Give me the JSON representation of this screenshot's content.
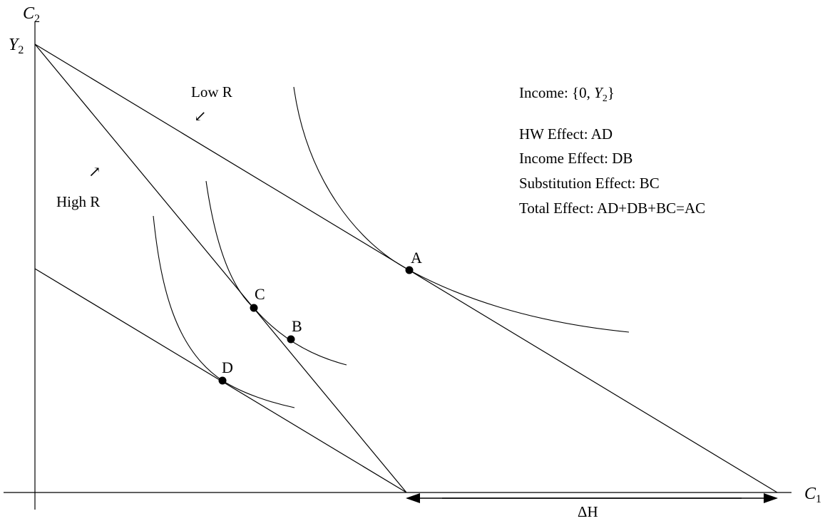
{
  "axes": {
    "y_label": "C",
    "y_sub": "2",
    "x_label": "C",
    "x_sub": "1",
    "y_intercept_label": "Y",
    "y_intercept_sub": "2"
  },
  "budget_lines": {
    "low_label": "Low R",
    "high_label": "High R",
    "arrow_low": "↙",
    "arrow_high": "↗"
  },
  "points": {
    "A": "A",
    "B": "B",
    "C": "C",
    "D": "D"
  },
  "delta_label": "ΔH",
  "notes": {
    "income_prefix": "Income: {0, ",
    "income_var": "Y",
    "income_sub": "2",
    "income_suffix": "}",
    "hw": "HW Effect: AD",
    "income_effect": "Income Effect: DB",
    "substitution": "Substitution Effect: BC",
    "total": "Total Effect: AD+DB+BC=AC"
  }
}
